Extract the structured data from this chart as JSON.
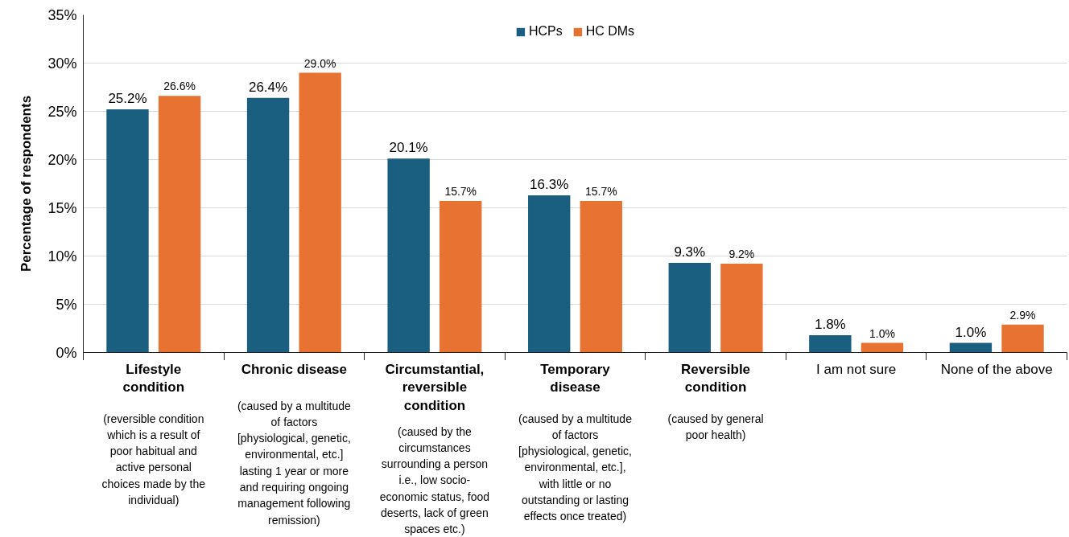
{
  "chart_data": {
    "type": "bar",
    "ylabel": "Percentage of respondents",
    "categories": [
      "Lifestyle\ncondition\n\n(reversible condition\nwhich is a result of\npoor habitual and\nactive personal\nchoices made by the\nindividual)",
      "Chronic disease\n\n(caused by a multitude\nof factors\n[physiological, genetic,\nenvironmental, etc.]\nlasting 1 year or more\nand requiring ongoing\nmanagement following\nremission)",
      "Circumstantial,\nreversible\ncondition\n\n(caused by the\ncircumstances\nsurrounding a person\ni.e., low socio-\neconomic status, food\ndeserts, lack of green\nspaces etc.)",
      "Temporary\ndisease\n\n(caused by a multitude\nof factors\n[physiological, genetic,\nenvironmental, etc.],\nwith little or no\noutstanding or lasting\neffects once treated)",
      "Reversible\ncondition\n\n(caused by general\npoor health)",
      "I am not sure",
      "None of the above"
    ],
    "series": [
      {
        "name": "HCPs",
        "color": "#1a5e80",
        "values": [
          25.2,
          26.4,
          20.1,
          16.3,
          9.3,
          1.8,
          1.0
        ],
        "value_labels": [
          "25.2%",
          "26.4%",
          "20.1%",
          "16.3%",
          "9.3%",
          "1.8%",
          "1.0%"
        ]
      },
      {
        "name": "HC DMs",
        "color": "#e87232",
        "values": [
          26.6,
          29.0,
          15.7,
          15.7,
          9.2,
          1.0,
          2.9
        ],
        "value_labels": [
          "26.6%",
          "29.0%",
          "15.7%",
          "15.7%",
          "9.2%",
          "1.0%",
          "2.9%"
        ]
      }
    ],
    "ylim": [
      0,
      35
    ],
    "yticks": [
      {
        "value": 0,
        "label": "0%"
      },
      {
        "value": 5,
        "label": "5%"
      },
      {
        "value": 10,
        "label": "10%"
      },
      {
        "value": 15,
        "label": "15%"
      },
      {
        "value": 20,
        "label": "20%"
      },
      {
        "value": 25,
        "label": "25%"
      },
      {
        "value": 30,
        "label": "30%"
      },
      {
        "value": 35,
        "label": "35%"
      }
    ],
    "grid": "y",
    "legend": "top"
  }
}
